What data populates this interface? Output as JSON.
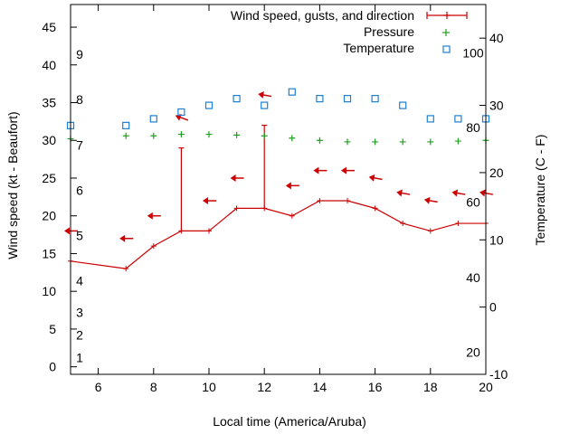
{
  "chart_data": {
    "type": "line",
    "xlabel": "Local time (America/Aruba)",
    "ylabel_left": "Wind speed (kt - Beaufort)",
    "ylabel_right": "Temperature (C - F)",
    "xlim": [
      5,
      20
    ],
    "x_ticks": [
      6,
      8,
      10,
      12,
      14,
      16,
      18,
      20
    ],
    "ylim_left": [
      -1,
      48
    ],
    "y_ticks_left": [
      0,
      5,
      10,
      15,
      20,
      25,
      30,
      35,
      40,
      45
    ],
    "ylim_right": [
      -10,
      45
    ],
    "y_ticks_right": [
      -10,
      0,
      10,
      20,
      30,
      40
    ],
    "beaufort_labels": [
      {
        "label": "1",
        "y": 1.2
      },
      {
        "label": "2",
        "y": 4.2
      },
      {
        "label": "3",
        "y": 7.2
      },
      {
        "label": "4",
        "y": 11.4
      },
      {
        "label": "5",
        "y": 17.4
      },
      {
        "label": "6",
        "y": 23.4
      },
      {
        "label": "7",
        "y": 29.4
      },
      {
        "label": "8",
        "y": 35.4
      },
      {
        "label": "9",
        "y": 41.4
      }
    ],
    "fahrenheit_labels": [
      {
        "label": "20",
        "y": -6.7
      },
      {
        "label": "40",
        "y": 4.4
      },
      {
        "label": "60",
        "y": 15.6
      },
      {
        "label": "80",
        "y": 26.7
      },
      {
        "label": "100",
        "y": 37.8
      }
    ],
    "legend": {
      "wind": "Wind speed, gusts, and direction",
      "pressure": "Pressure",
      "temperature": "Temperature",
      "position": "top-right"
    },
    "series": [
      {
        "name": "Wind speed, gusts, and direction",
        "color": "#cc0000",
        "x": [
          5,
          7,
          8,
          9,
          10,
          11,
          12,
          13,
          14,
          15,
          16,
          17,
          18,
          19,
          20
        ],
        "values": [
          14,
          13,
          16,
          18,
          18,
          21,
          21,
          20,
          22,
          22,
          21,
          19,
          18,
          19,
          19
        ]
      },
      {
        "name": "Gusts",
        "color": "#cc0000",
        "x": [
          9,
          12
        ],
        "low": [
          18,
          21
        ],
        "high": [
          29,
          32
        ]
      },
      {
        "name": "Direction arrows",
        "color": "#cc0000",
        "x": [
          5,
          7,
          8,
          9,
          10,
          11,
          12,
          13,
          14,
          15,
          16,
          17,
          18,
          19,
          20
        ],
        "values": [
          18,
          17,
          20,
          33,
          22,
          25,
          36,
          24,
          26,
          26,
          25,
          23,
          22,
          23,
          23
        ],
        "angle": [
          0,
          0,
          0,
          20,
          0,
          0,
          10,
          0,
          0,
          0,
          10,
          10,
          10,
          10,
          10
        ]
      },
      {
        "name": "Pressure",
        "color": "#20a020",
        "x": [
          5,
          7,
          8,
          9,
          10,
          11,
          12,
          13,
          14,
          15,
          16,
          17,
          18,
          19,
          20
        ],
        "values": [
          30.2,
          30.6,
          30.6,
          30.8,
          30.8,
          30.7,
          30.6,
          30.3,
          30.0,
          29.8,
          29.8,
          29.8,
          29.8,
          29.9,
          30.0
        ]
      },
      {
        "name": "Temperature",
        "color": "#1e7fd0",
        "x": [
          5,
          7,
          8,
          9,
          10,
          11,
          12,
          13,
          14,
          15,
          16,
          17,
          18,
          19,
          20
        ],
        "values": [
          27.0,
          27.0,
          28.0,
          29.0,
          30.0,
          31.0,
          30.0,
          32.0,
          31.0,
          31.0,
          31.0,
          30.0,
          28.0,
          28.0,
          28.0
        ]
      }
    ]
  }
}
